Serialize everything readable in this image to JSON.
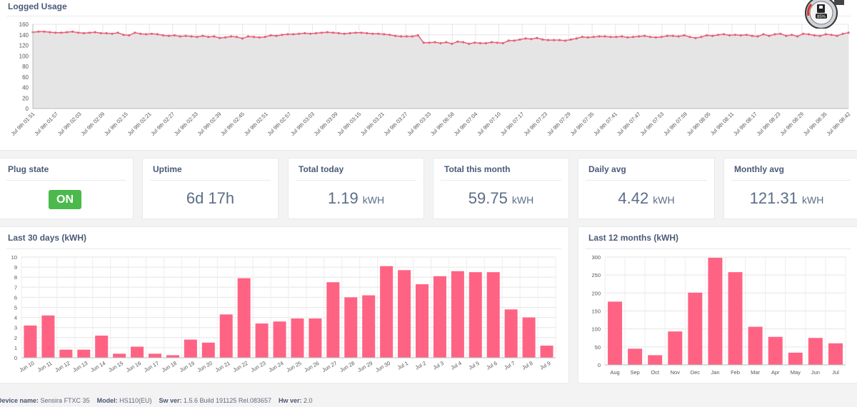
{
  "logged_usage": {
    "title": "Logged Usage",
    "chart_data": {
      "type": "area",
      "y_ticks": [
        0,
        20,
        40,
        60,
        80,
        100,
        120,
        140,
        160
      ],
      "ylim": [
        0,
        160
      ],
      "x_labels": [
        "Jul 9th 01:51",
        "Jul 9th 01:57",
        "Jul 9th 02:03",
        "Jul 9th 02:09",
        "Jul 9th 02:15",
        "Jul 9th 02:21",
        "Jul 9th 02:27",
        "Jul 9th 02:33",
        "Jul 9th 02:39",
        "Jul 9th 02:45",
        "Jul 9th 02:51",
        "Jul 9th 02:57",
        "Jul 9th 03:03",
        "Jul 9th 03:09",
        "Jul 9th 03:15",
        "Jul 9th 03:21",
        "Jul 9th 03:27",
        "Jul 9th 03:33",
        "Jul 9th 06:58",
        "Jul 9th 07:04",
        "Jul 9th 07:10",
        "Jul 9th 07:17",
        "Jul 9th 07:23",
        "Jul 9th 07:29",
        "Jul 9th 07:35",
        "Jul 9th 07:41",
        "Jul 9th 07:47",
        "Jul 9th 07:53",
        "Jul 9th 07:59",
        "Jul 9th 08:05",
        "Jul 9th 08:11",
        "Jul 9th 08:17",
        "Jul 9th 08:23",
        "Jul 9th 08:29",
        "Jul 9th 08:35",
        "Jul 9th 08:42"
      ],
      "values": [
        145,
        146,
        146,
        145,
        144,
        144,
        145,
        146,
        144,
        143,
        144,
        145,
        143,
        143,
        142,
        144,
        140,
        139,
        144,
        142,
        141,
        142,
        141,
        139,
        138,
        139,
        137,
        138,
        137,
        136,
        138,
        136,
        137,
        134,
        135,
        137,
        136,
        133,
        137,
        136,
        135,
        136,
        139,
        138,
        140,
        141,
        141,
        142,
        143,
        142,
        143,
        144,
        145,
        144,
        143,
        142,
        143,
        144,
        144,
        143,
        142,
        142,
        141,
        140,
        138,
        137,
        137,
        137,
        139,
        125,
        125,
        126,
        124,
        126,
        123,
        127,
        126,
        123,
        125,
        124,
        124,
        126,
        125,
        124,
        129,
        129,
        131,
        133,
        132,
        134,
        131,
        130,
        130,
        130,
        129,
        131,
        133,
        136,
        135,
        136,
        137,
        137,
        136,
        136,
        137,
        135,
        136,
        137,
        138,
        136,
        135,
        136,
        138,
        138,
        137,
        139,
        136,
        134,
        136,
        139,
        138,
        140,
        141,
        139,
        140,
        139,
        140,
        138,
        137,
        141,
        138,
        141,
        142,
        138,
        140,
        137,
        142,
        141,
        139,
        138,
        141,
        140,
        138,
        142,
        144
      ]
    }
  },
  "stats": {
    "plug_state": {
      "title": "Plug state",
      "value": "ON"
    },
    "uptime": {
      "title": "Uptime",
      "value": "6d 17h"
    },
    "total_today": {
      "title": "Total today",
      "value": "1.19",
      "unit": "kWH"
    },
    "total_month": {
      "title": "Total this month",
      "value": "59.75",
      "unit": "kWH"
    },
    "daily_avg": {
      "title": "Daily avg",
      "value": "4.42",
      "unit": "kWH"
    },
    "monthly_avg": {
      "title": "Monthly avg",
      "value": "121.31",
      "unit": "kWH"
    }
  },
  "last30": {
    "title": "Last 30 days (kWH)",
    "chart_data": {
      "type": "bar",
      "ylim": [
        0,
        10
      ],
      "y_ticks": [
        0,
        1,
        2,
        3,
        4,
        5,
        6,
        7,
        8,
        9,
        10
      ],
      "categories": [
        "Jun 10",
        "Jun 11",
        "Jun 12",
        "Jun 13",
        "Jun 14",
        "Jun 15",
        "Jun 16",
        "Jun 17",
        "Jun 18",
        "Jun 19",
        "Jun 20",
        "Jun 21",
        "Jun 22",
        "Jun 23",
        "Jun 24",
        "Jun 25",
        "Jun 26",
        "Jun 27",
        "Jun 28",
        "Jun 29",
        "Jun 30",
        "Jul 1",
        "Jul 2",
        "Jul 3",
        "Jul 4",
        "Jul 5",
        "Jul 6",
        "Jul 7",
        "Jul 8",
        "Jul 9"
      ],
      "values": [
        3.2,
        4.2,
        0.8,
        0.8,
        2.2,
        0.4,
        1.1,
        0.4,
        0.25,
        1.8,
        1.5,
        4.3,
        7.9,
        3.4,
        3.6,
        3.9,
        3.9,
        7.5,
        6.0,
        6.2,
        9.1,
        8.7,
        7.3,
        8.1,
        8.6,
        8.5,
        8.5,
        4.8,
        4.0,
        1.2
      ]
    }
  },
  "last12": {
    "title": "Last 12 months (kWH)",
    "chart_data": {
      "type": "bar",
      "ylim": [
        0,
        300
      ],
      "y_ticks": [
        0,
        50,
        100,
        150,
        200,
        250,
        300
      ],
      "categories": [
        "Aug",
        "Sep",
        "Oct",
        "Nov",
        "Dec",
        "Jan",
        "Feb",
        "Mar",
        "Apr",
        "May",
        "Jun",
        "Jul"
      ],
      "values": [
        176,
        45,
        27,
        93,
        201,
        298,
        258,
        106,
        78,
        34,
        75,
        60
      ]
    }
  },
  "footer": {
    "device_label": "Device name:",
    "device_value": "Sensira FTXC 35",
    "model_label": "Model:",
    "model_value": "HS110(EU)",
    "sw_label": "Sw ver:",
    "sw_value": "1.5.6 Build 191125 Rel.083657",
    "hw_label": "Hw ver:",
    "hw_value": "2.0"
  },
  "gauge": {
    "percent": "85%"
  },
  "colors": {
    "bar": "#ff6384",
    "line": "#e8607a",
    "area": "#e5e5e5",
    "on": "#4cb94c"
  }
}
